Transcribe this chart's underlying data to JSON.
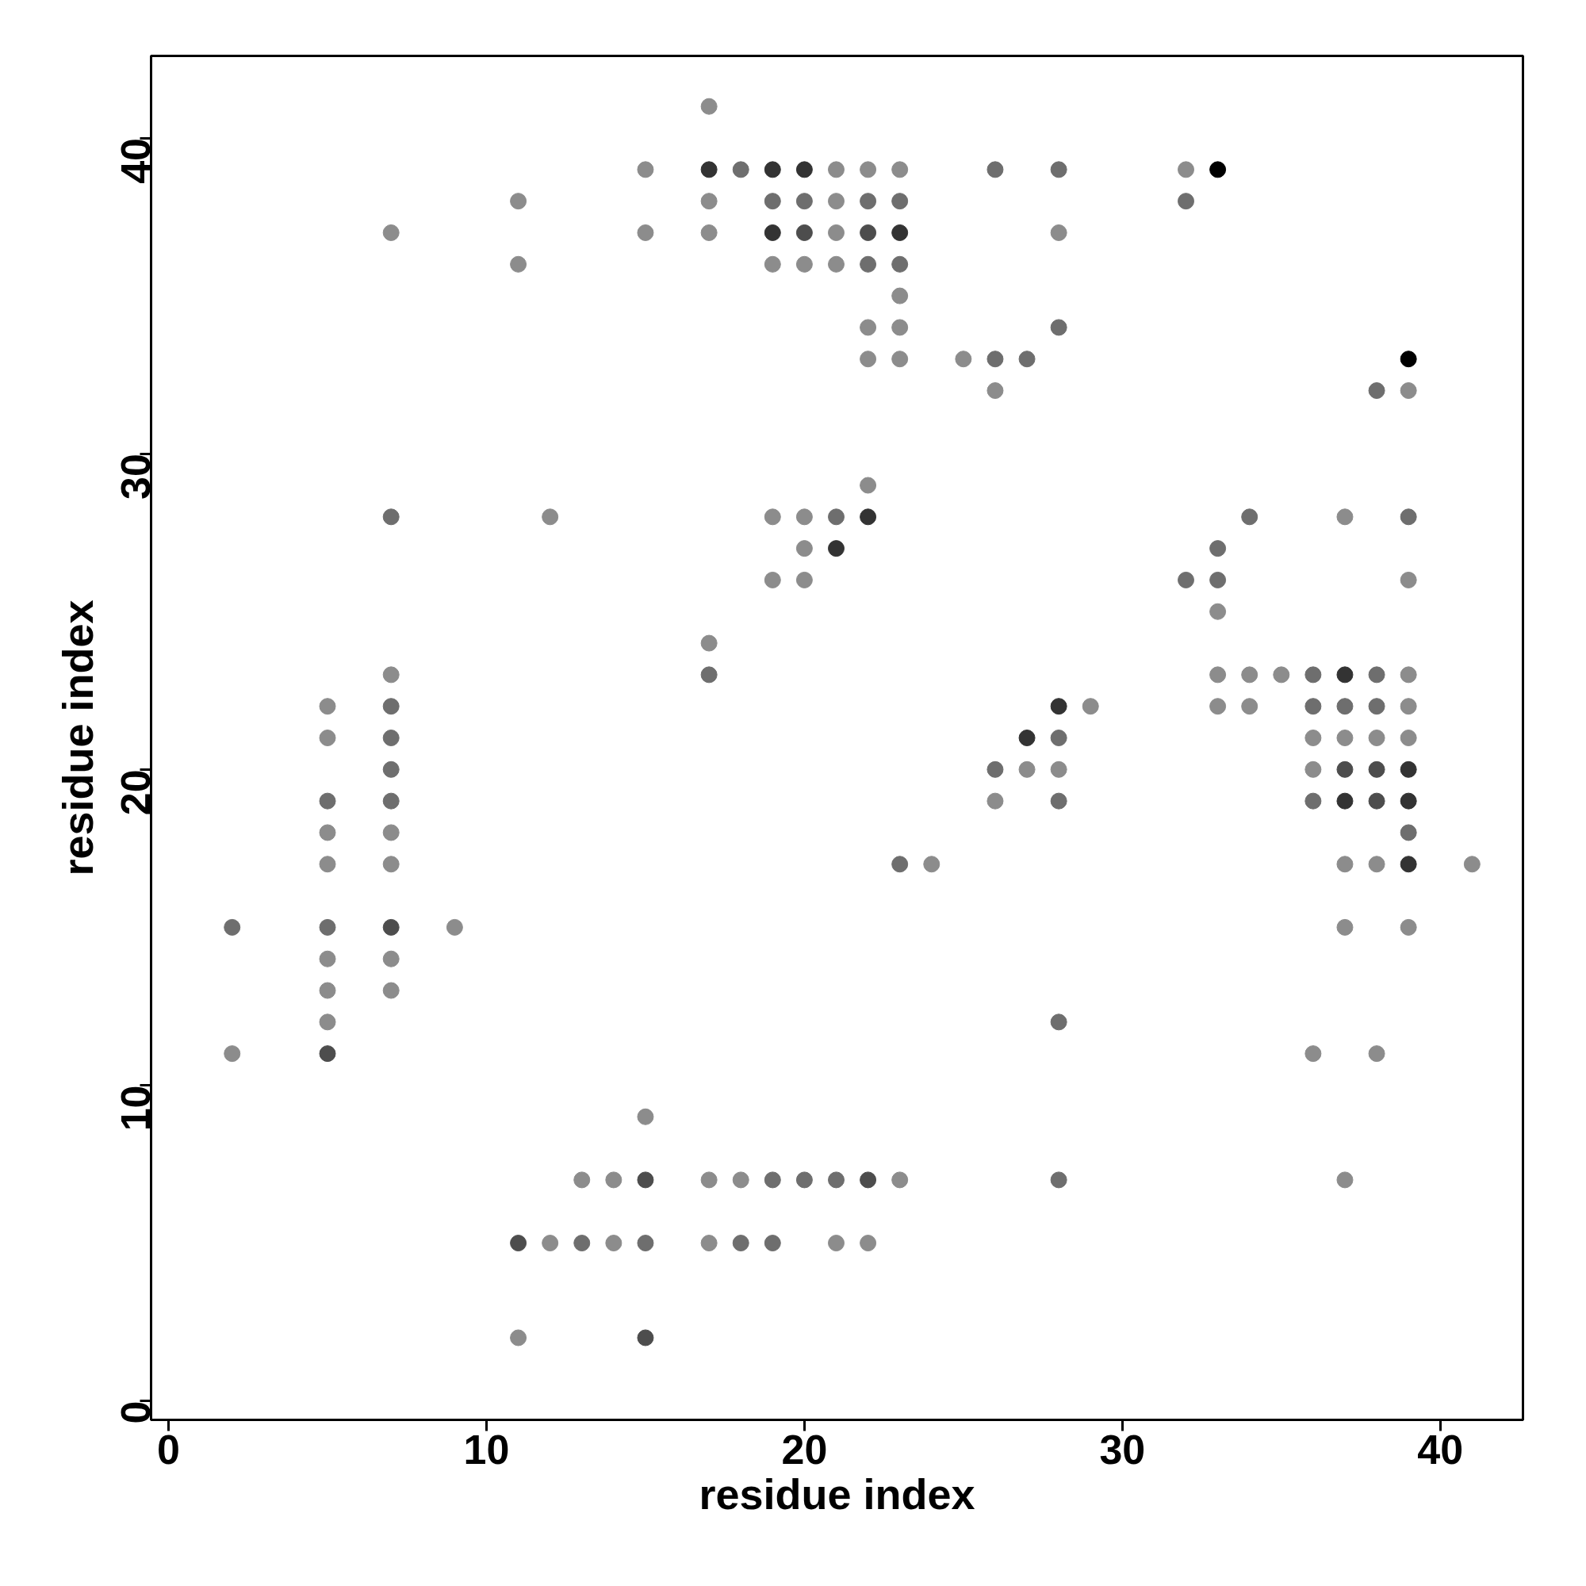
{
  "chart_data": {
    "type": "scatter",
    "xlabel": "residue index",
    "ylabel": "residue index",
    "xlim": [
      -0.55,
      42.6
    ],
    "ylim": [
      -0.6,
      42.6
    ],
    "xticks": [
      0,
      10,
      20,
      30,
      40
    ],
    "yticks": [
      0,
      10,
      20,
      30,
      40
    ],
    "grid": false,
    "marker": "circle",
    "series": [
      {
        "color": "#8c8c8c",
        "x": [
          2,
          5,
          5,
          5,
          5,
          5,
          5,
          5,
          7,
          7,
          7,
          7,
          7,
          7,
          9,
          11,
          11,
          11,
          12,
          12,
          13,
          14,
          14,
          15,
          15,
          15,
          17,
          17,
          17,
          17,
          17,
          17,
          18,
          19,
          19,
          19,
          20,
          20,
          20,
          20,
          21,
          21,
          21,
          21,
          21,
          22,
          22,
          22,
          22,
          22,
          23,
          23,
          23,
          23,
          23,
          24,
          25,
          26,
          26,
          27,
          28,
          28,
          29,
          32,
          33,
          33,
          33,
          34,
          34,
          35,
          36,
          36,
          36,
          37,
          37,
          37,
          37,
          37,
          38,
          38,
          38,
          39,
          39,
          39,
          39,
          39,
          39,
          41
        ],
        "values": [
          11,
          22,
          21,
          18,
          17,
          14,
          13,
          12,
          37,
          23,
          18,
          17,
          14,
          13,
          15,
          38,
          36,
          2,
          28,
          5,
          7,
          7,
          5,
          39,
          37,
          9,
          41,
          38,
          37,
          24,
          7,
          5,
          7,
          36,
          28,
          26,
          36,
          28,
          27,
          26,
          39,
          38,
          37,
          36,
          5,
          39,
          34,
          33,
          29,
          5,
          39,
          35,
          34,
          33,
          7,
          17,
          33,
          32,
          19,
          20,
          37,
          20,
          22,
          39,
          25,
          23,
          22,
          23,
          22,
          23,
          21,
          20,
          11,
          28,
          21,
          17,
          15,
          7,
          21,
          17,
          11,
          32,
          26,
          23,
          22,
          21,
          15,
          17
        ]
      },
      {
        "color": "#6e6e6e",
        "x": [
          2,
          5,
          5,
          7,
          7,
          7,
          7,
          7,
          13,
          15,
          17,
          18,
          18,
          19,
          19,
          19,
          20,
          20,
          21,
          21,
          22,
          22,
          23,
          23,
          23,
          26,
          26,
          26,
          27,
          28,
          28,
          28,
          28,
          28,
          28,
          32,
          32,
          33,
          33,
          34,
          36,
          36,
          36,
          37,
          38,
          38,
          38,
          39,
          39
        ],
        "values": [
          15,
          19,
          15,
          28,
          22,
          21,
          20,
          19,
          5,
          5,
          23,
          39,
          5,
          38,
          7,
          5,
          38,
          7,
          28,
          7,
          38,
          36,
          38,
          36,
          17,
          39,
          33,
          20,
          33,
          39,
          34,
          21,
          19,
          12,
          7,
          38,
          26,
          27,
          26,
          28,
          23,
          22,
          19,
          22,
          32,
          23,
          22,
          28,
          18
        ]
      },
      {
        "color": "#4d4d4d",
        "x": [
          5,
          7,
          11,
          15,
          15,
          20,
          22,
          22,
          37,
          38,
          38
        ],
        "values": [
          11,
          15,
          5,
          7,
          2,
          37,
          37,
          7,
          20,
          20,
          19
        ]
      },
      {
        "color": "#333333",
        "x": [
          17,
          19,
          19,
          20,
          21,
          22,
          23,
          27,
          28,
          37,
          37,
          39,
          39,
          39
        ],
        "values": [
          39,
          39,
          37,
          39,
          27,
          28,
          37,
          21,
          22,
          23,
          19,
          20,
          19,
          17
        ]
      },
      {
        "color": "#000000",
        "x": [
          33,
          39
        ],
        "values": [
          39,
          33
        ]
      }
    ]
  }
}
